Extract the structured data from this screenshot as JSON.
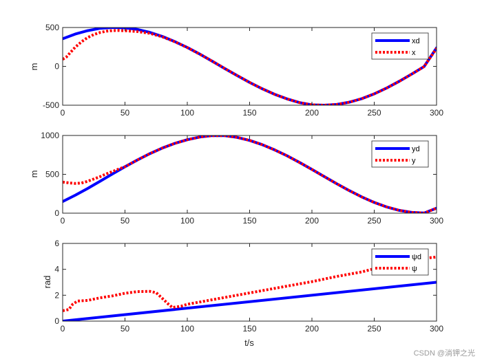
{
  "chart_data": [
    {
      "type": "line",
      "id": "pos-x",
      "title": "",
      "xlabel": "",
      "ylabel": "m",
      "xlim": [
        0,
        300
      ],
      "ylim": [
        -500,
        500
      ],
      "xticks": [
        0,
        50,
        100,
        150,
        200,
        250,
        300
      ],
      "yticks": [
        -500,
        0,
        500
      ],
      "series": [
        {
          "name": "xd",
          "style": "solid",
          "color": "#0000ff",
          "x": [
            0,
            10,
            20,
            30,
            40,
            50,
            60,
            70,
            80,
            90,
            100,
            110,
            120,
            130,
            140,
            150,
            160,
            170,
            180,
            190,
            200,
            210,
            220,
            230,
            240,
            250,
            260,
            270,
            280,
            290,
            300
          ],
          "y": [
            355,
            415,
            459,
            489,
            500,
            496,
            475,
            437,
            385,
            319,
            243,
            158,
            66,
            -27,
            -119,
            -207,
            -288,
            -359,
            -419,
            -466,
            -496,
            -500,
            -490,
            -461,
            -416,
            -354,
            -279,
            -193,
            -100,
            -3,
            238
          ]
        },
        {
          "name": "x",
          "style": "dotted",
          "color": "#ff0000",
          "x": [
            0,
            3,
            6,
            10,
            15,
            20,
            25,
            30,
            35,
            40,
            45,
            50,
            60,
            70,
            80,
            90,
            100,
            110,
            120,
            130,
            140,
            150,
            160,
            170,
            180,
            190,
            200,
            210,
            220,
            230,
            240,
            250,
            260,
            270,
            280,
            290,
            300
          ],
          "y": [
            90,
            120,
            175,
            245,
            315,
            370,
            410,
            435,
            452,
            460,
            462,
            458,
            448,
            425,
            380,
            317,
            242,
            157,
            66,
            -27,
            -119,
            -207,
            -288,
            -359,
            -419,
            -466,
            -496,
            -500,
            -490,
            -461,
            -416,
            -354,
            -279,
            -193,
            -100,
            -3,
            232
          ]
        }
      ],
      "legend": {
        "position": "top-right",
        "entries": [
          "xd",
          "x"
        ]
      }
    },
    {
      "type": "line",
      "id": "pos-y",
      "title": "",
      "xlabel": "",
      "ylabel": "m",
      "xlim": [
        0,
        300
      ],
      "ylim": [
        0,
        1000
      ],
      "xticks": [
        0,
        50,
        100,
        150,
        200,
        250,
        300
      ],
      "yticks": [
        0,
        500,
        1000
      ],
      "series": [
        {
          "name": "yd",
          "style": "solid",
          "color": "#0000ff",
          "x": [
            0,
            10,
            20,
            30,
            40,
            50,
            60,
            70,
            80,
            90,
            100,
            110,
            120,
            130,
            140,
            150,
            160,
            170,
            180,
            190,
            200,
            210,
            220,
            230,
            240,
            250,
            260,
            270,
            280,
            290,
            300
          ],
          "y": [
            150,
            230,
            318,
            411,
            505,
            597,
            685,
            766,
            838,
            898,
            945,
            980,
            998,
            997,
            975,
            936,
            882,
            815,
            739,
            653,
            563,
            470,
            378,
            290,
            209,
            138,
            80,
            36,
            10,
            2,
            65
          ]
        },
        {
          "name": "y",
          "style": "dotted",
          "color": "#ff0000",
          "x": [
            0,
            5,
            10,
            15,
            20,
            25,
            30,
            35,
            40,
            45,
            50,
            60,
            70,
            80,
            90,
            100,
            110,
            120,
            130,
            140,
            150,
            160,
            170,
            180,
            190,
            200,
            210,
            220,
            230,
            240,
            250,
            260,
            270,
            280,
            290,
            300
          ],
          "y": [
            400,
            390,
            382,
            388,
            410,
            440,
            470,
            505,
            535,
            568,
            597,
            685,
            766,
            838,
            898,
            945,
            980,
            998,
            997,
            975,
            936,
            882,
            815,
            739,
            653,
            563,
            470,
            378,
            290,
            209,
            138,
            80,
            36,
            10,
            2,
            65
          ]
        }
      ],
      "legend": {
        "position": "top-right",
        "entries": [
          "yd",
          "y"
        ]
      }
    },
    {
      "type": "line",
      "id": "heading",
      "title": "",
      "xlabel": "t/s",
      "ylabel": "rad",
      "xlim": [
        0,
        300
      ],
      "ylim": [
        0,
        6
      ],
      "xticks": [
        0,
        50,
        100,
        150,
        200,
        250,
        300
      ],
      "yticks": [
        0,
        2,
        4,
        6
      ],
      "series": [
        {
          "name": "ψd",
          "style": "solid",
          "color": "#0000ff",
          "x": [
            0,
            300
          ],
          "y": [
            0.0,
            3.0
          ]
        },
        {
          "name": "ψ",
          "style": "dotted",
          "color": "#ff0000",
          "x": [
            0,
            5,
            8,
            12,
            20,
            30,
            40,
            50,
            60,
            70,
            75,
            80,
            85,
            88,
            95,
            100,
            120,
            140,
            160,
            180,
            200,
            220,
            240,
            250,
            260,
            280,
            300
          ],
          "y": [
            0.8,
            0.9,
            1.3,
            1.55,
            1.6,
            1.8,
            1.95,
            2.15,
            2.28,
            2.3,
            2.2,
            1.75,
            1.3,
            1.05,
            1.15,
            1.3,
            1.65,
            2.0,
            2.35,
            2.7,
            3.05,
            3.45,
            3.8,
            4.05,
            4.4,
            4.75,
            4.95
          ]
        }
      ],
      "legend": {
        "position": "top-right",
        "entries": [
          "ψd",
          "ψ"
        ]
      }
    }
  ],
  "watermark": "CSDN @淌钾之光"
}
